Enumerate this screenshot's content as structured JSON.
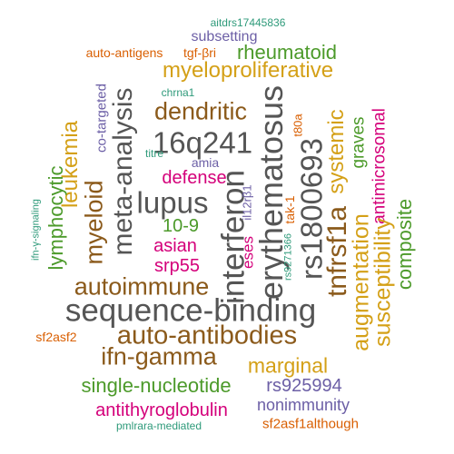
{
  "colors": {
    "brown": "#8b5a1b",
    "gold": "#d4a017",
    "grey": "#555555",
    "green": "#4c9a2a",
    "magenta": "#d4007a",
    "orange": "#d95f02",
    "purple": "#6c5fa6",
    "teal": "#2e9a7a"
  },
  "words": [
    {
      "text": "aitdrs17445836",
      "color": "teal"
    },
    {
      "text": "subsetting",
      "color": "purple"
    },
    {
      "text": "auto-antigens",
      "color": "orange"
    },
    {
      "text": "tgf-βri",
      "color": "orange"
    },
    {
      "text": "rheumatoid",
      "color": "green"
    },
    {
      "text": "myeloproliferative",
      "color": "gold"
    },
    {
      "text": "chrna1",
      "color": "teal"
    },
    {
      "text": "co-targeted",
      "color": "purple"
    },
    {
      "text": "meta-analysis",
      "color": "grey"
    },
    {
      "text": "dendritic",
      "color": "brown"
    },
    {
      "text": "16q241",
      "color": "grey"
    },
    {
      "text": "erythematosus",
      "color": "grey"
    },
    {
      "text": "rs1800693",
      "color": "grey"
    },
    {
      "text": "t80a",
      "color": "orange"
    },
    {
      "text": "systemic",
      "color": "gold"
    },
    {
      "text": "graves",
      "color": "green"
    },
    {
      "text": "antimicrosomal",
      "color": "magenta"
    },
    {
      "text": "leukemia",
      "color": "gold"
    },
    {
      "text": "myeloid",
      "color": "brown"
    },
    {
      "text": "titre",
      "color": "teal"
    },
    {
      "text": "amia",
      "color": "purple"
    },
    {
      "text": "lymphocytic",
      "color": "green"
    },
    {
      "text": "defense",
      "color": "magenta"
    },
    {
      "text": "interferon",
      "color": "grey"
    },
    {
      "text": "lupus",
      "color": "grey"
    },
    {
      "text": "il12rβ1",
      "color": "purple"
    },
    {
      "text": "tak-1",
      "color": "orange"
    },
    {
      "text": "tnfrsf1a",
      "color": "brown"
    },
    {
      "text": "ifn-γ-signaling",
      "color": "teal"
    },
    {
      "text": "10-9",
      "color": "green"
    },
    {
      "text": "asian",
      "color": "magenta"
    },
    {
      "text": "srp55",
      "color": "magenta"
    },
    {
      "text": "eses",
      "color": "magenta"
    },
    {
      "text": "rs9271366",
      "color": "teal"
    },
    {
      "text": "augmentation",
      "color": "gold"
    },
    {
      "text": "susceptibility",
      "color": "gold"
    },
    {
      "text": "composite",
      "color": "green"
    },
    {
      "text": "autoimmune",
      "color": "brown"
    },
    {
      "text": "sequence-binding",
      "color": "grey"
    },
    {
      "text": "auto-antibodies",
      "color": "brown"
    },
    {
      "text": "sf2asf2",
      "color": "orange"
    },
    {
      "text": "ifn-gamma",
      "color": "brown"
    },
    {
      "text": "marginal",
      "color": "gold"
    },
    {
      "text": "single-nucleotide",
      "color": "green"
    },
    {
      "text": "rs925994",
      "color": "purple"
    },
    {
      "text": "antithyroglobulin",
      "color": "magenta"
    },
    {
      "text": "nonimmunity",
      "color": "purple"
    },
    {
      "text": "pmlrara-mediated",
      "color": "teal"
    },
    {
      "text": "sf2asf1although",
      "color": "orange"
    }
  ]
}
